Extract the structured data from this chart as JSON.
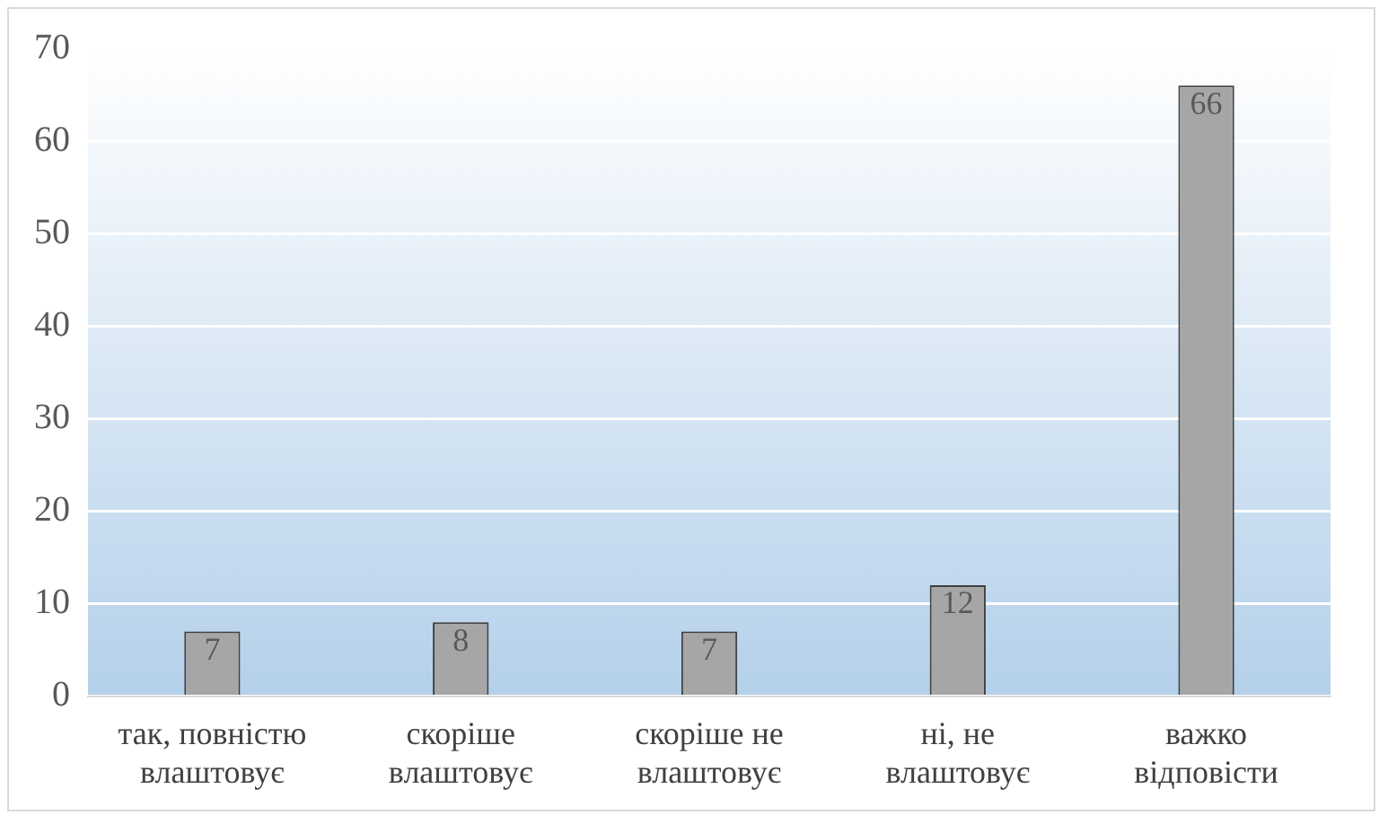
{
  "chart_data": {
    "type": "bar",
    "categories": [
      "так, повністю влаштовує",
      "скоріше влаштовує",
      "скоріше не влаштовує",
      "ні, не влаштовує",
      "важко відповісти"
    ],
    "values": [
      7,
      8,
      7,
      12,
      66
    ],
    "color": "#a6a6a6",
    "ylim": [
      0,
      70
    ],
    "yticks": [
      0,
      10,
      20,
      30,
      40,
      50,
      60,
      70
    ],
    "grid": "y",
    "data_labels": true,
    "legend": false
  }
}
